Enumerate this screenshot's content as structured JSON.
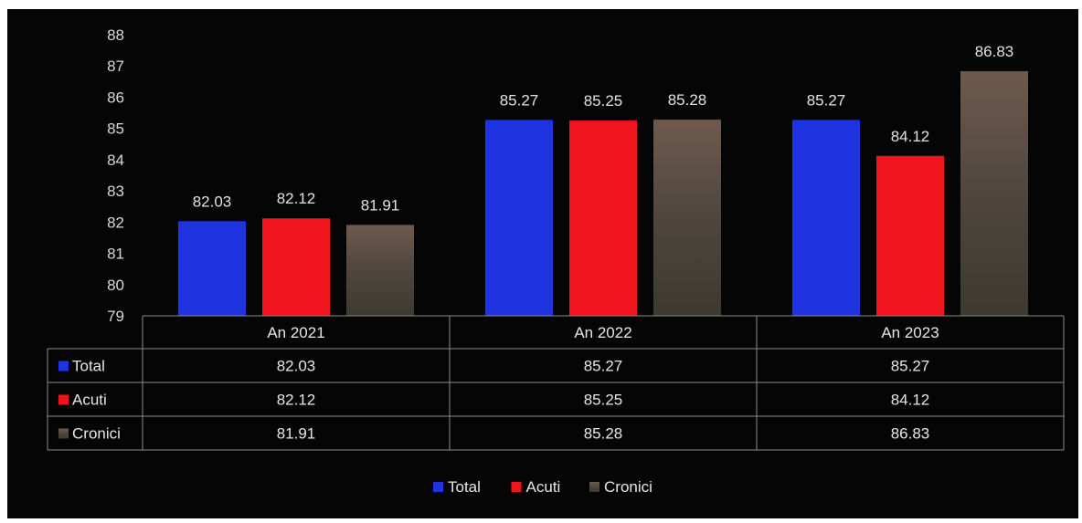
{
  "chart_data": {
    "type": "bar",
    "categories": [
      "An 2021",
      "An 2022",
      "An 2023"
    ],
    "series": [
      {
        "name": "Total",
        "values": [
          82.03,
          85.27,
          85.27
        ],
        "color": "#1f34e0"
      },
      {
        "name": "Acuti",
        "values": [
          82.12,
          85.25,
          84.12
        ],
        "color": "#f0141e"
      },
      {
        "name": "Cronici",
        "values": [
          81.91,
          85.28,
          86.83
        ],
        "color": "#5a4d44"
      }
    ],
    "y_ticks": [
      79,
      80,
      81,
      82,
      83,
      84,
      85,
      86,
      87,
      88
    ],
    "ylim": [
      79,
      88
    ],
    "title": "",
    "xlabel": "",
    "ylabel": "",
    "grid": false,
    "data_table": true,
    "legend": "bottom"
  }
}
